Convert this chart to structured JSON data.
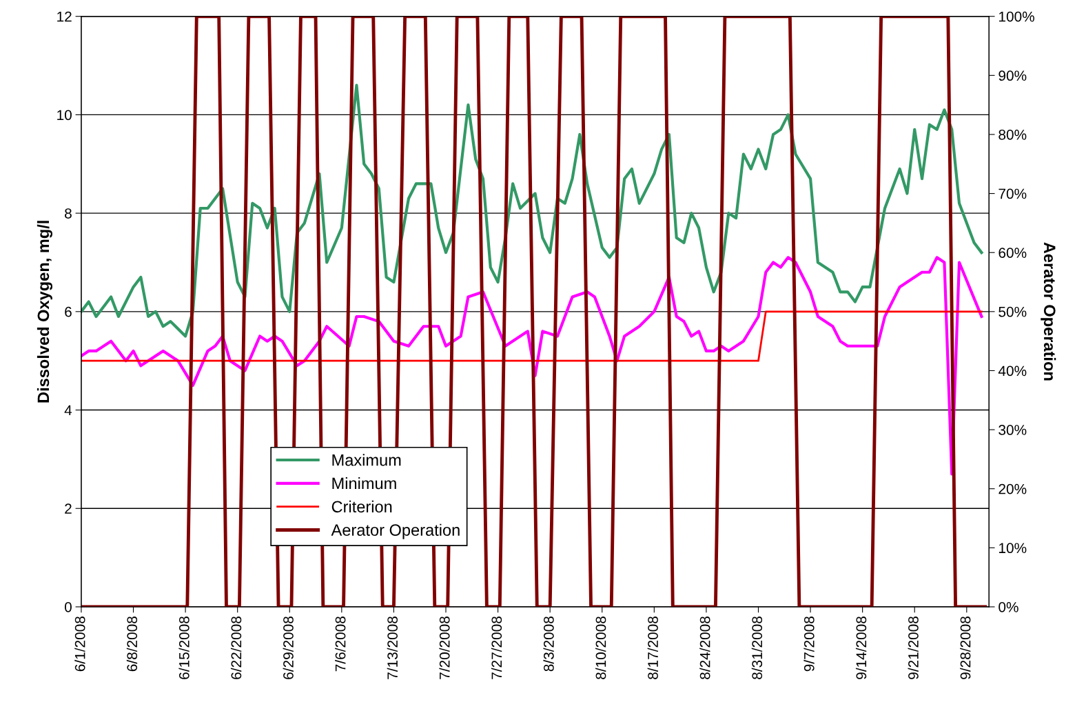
{
  "chart_data": {
    "type": "line",
    "ylabel": "Dissolved Oxygen, mg/l",
    "y2label": "Aerator Operation",
    "xlim": [
      "2008-06-01",
      "2008-10-01"
    ],
    "xticks": [
      {
        "value": "2008-06-01",
        "label": "6/1/2008"
      },
      {
        "value": "2008-06-08",
        "label": "6/8/2008"
      },
      {
        "value": "2008-06-15",
        "label": "6/15/2008"
      },
      {
        "value": "2008-06-22",
        "label": "6/22/2008"
      },
      {
        "value": "2008-06-29",
        "label": "6/29/2008"
      },
      {
        "value": "2008-07-06",
        "label": "7/6/2008"
      },
      {
        "value": "2008-07-13",
        "label": "7/13/2008"
      },
      {
        "value": "2008-07-20",
        "label": "7/20/2008"
      },
      {
        "value": "2008-07-27",
        "label": "7/27/2008"
      },
      {
        "value": "2008-08-03",
        "label": "8/3/2008"
      },
      {
        "value": "2008-08-10",
        "label": "8/10/2008"
      },
      {
        "value": "2008-08-17",
        "label": "8/17/2008"
      },
      {
        "value": "2008-08-24",
        "label": "8/24/2008"
      },
      {
        "value": "2008-08-31",
        "label": "8/31/2008"
      },
      {
        "value": "2008-09-07",
        "label": "9/7/2008"
      },
      {
        "value": "2008-09-14",
        "label": "9/14/2008"
      },
      {
        "value": "2008-09-21",
        "label": "9/21/2008"
      },
      {
        "value": "2008-09-28",
        "label": "9/28/2008"
      }
    ],
    "ylim": [
      0,
      12
    ],
    "yticks": [
      0,
      2,
      4,
      6,
      8,
      10,
      12
    ],
    "y2lim": [
      0,
      100
    ],
    "y2ticks": [
      {
        "value": 0,
        "label": "0%"
      },
      {
        "value": 10,
        "label": "10%"
      },
      {
        "value": 20,
        "label": "20%"
      },
      {
        "value": 30,
        "label": "30%"
      },
      {
        "value": 40,
        "label": "40%"
      },
      {
        "value": 50,
        "label": "50%"
      },
      {
        "value": 60,
        "label": "60%"
      },
      {
        "value": 70,
        "label": "70%"
      },
      {
        "value": 80,
        "label": "80%"
      },
      {
        "value": 90,
        "label": "90%"
      },
      {
        "value": 100,
        "label": "100%"
      }
    ],
    "grid": "y",
    "legend": "bottom left",
    "marker": "none",
    "line_style": "solid",
    "series": [
      {
        "name": "Maximum",
        "color": "#339966",
        "x": [
          "2008-06-01",
          "2008-06-02",
          "2008-06-03",
          "2008-06-05",
          "2008-06-06",
          "2008-06-08",
          "2008-06-09",
          "2008-06-10",
          "2008-06-11",
          "2008-06-12",
          "2008-06-13",
          "2008-06-15",
          "2008-06-16",
          "2008-06-17",
          "2008-06-18",
          "2008-06-20",
          "2008-06-22",
          "2008-06-23",
          "2008-06-24",
          "2008-06-25",
          "2008-06-26",
          "2008-06-27",
          "2008-06-28",
          "2008-06-29",
          "2008-06-30",
          "2008-07-01",
          "2008-07-03",
          "2008-07-04",
          "2008-07-06",
          "2008-07-08",
          "2008-07-09",
          "2008-07-10",
          "2008-07-11",
          "2008-07-12",
          "2008-07-13",
          "2008-07-15",
          "2008-07-16",
          "2008-07-18",
          "2008-07-19",
          "2008-07-20",
          "2008-07-21",
          "2008-07-23",
          "2008-07-24",
          "2008-07-25",
          "2008-07-26",
          "2008-07-27",
          "2008-07-28",
          "2008-07-29",
          "2008-07-30",
          "2008-08-01",
          "2008-08-02",
          "2008-08-03",
          "2008-08-04",
          "2008-08-05",
          "2008-08-06",
          "2008-08-07",
          "2008-08-08",
          "2008-08-10",
          "2008-08-11",
          "2008-08-12",
          "2008-08-13",
          "2008-08-14",
          "2008-08-15",
          "2008-08-17",
          "2008-08-18",
          "2008-08-19",
          "2008-08-20",
          "2008-08-21",
          "2008-08-22",
          "2008-08-23",
          "2008-08-24",
          "2008-08-25",
          "2008-08-26",
          "2008-08-27",
          "2008-08-28",
          "2008-08-29",
          "2008-08-30",
          "2008-08-31",
          "2008-09-01",
          "2008-09-02",
          "2008-09-03",
          "2008-09-04",
          "2008-09-05",
          "2008-09-07",
          "2008-09-08",
          "2008-09-10",
          "2008-09-11",
          "2008-09-12",
          "2008-09-13",
          "2008-09-14",
          "2008-09-15",
          "2008-09-17",
          "2008-09-19",
          "2008-09-20",
          "2008-09-21",
          "2008-09-22",
          "2008-09-23",
          "2008-09-24",
          "2008-09-25",
          "2008-09-26",
          "2008-09-27",
          "2008-09-29",
          "2008-09-30"
        ],
        "values": [
          6.0,
          6.2,
          5.9,
          6.3,
          5.9,
          6.5,
          6.7,
          5.9,
          6.0,
          5.7,
          5.8,
          5.5,
          6.0,
          8.1,
          8.1,
          8.5,
          6.6,
          6.3,
          8.2,
          8.1,
          7.7,
          8.1,
          6.3,
          6.0,
          7.6,
          7.8,
          8.8,
          7.0,
          7.7,
          10.6,
          9.0,
          8.8,
          8.5,
          6.7,
          6.6,
          8.3,
          8.6,
          8.6,
          7.7,
          7.2,
          7.6,
          10.2,
          9.1,
          8.7,
          6.9,
          6.6,
          7.5,
          8.6,
          8.1,
          8.4,
          7.5,
          7.2,
          8.3,
          8.2,
          8.7,
          9.6,
          8.6,
          7.3,
          7.1,
          7.3,
          8.7,
          8.9,
          8.2,
          8.8,
          9.3,
          9.6,
          7.5,
          7.4,
          8.0,
          7.7,
          6.9,
          6.4,
          6.8,
          8.0,
          7.9,
          9.2,
          8.9,
          9.3,
          8.9,
          9.6,
          9.7,
          10.0,
          9.2,
          8.7,
          7.0,
          6.8,
          6.4,
          6.4,
          6.2,
          6.5,
          6.5,
          8.1,
          8.9,
          8.4,
          9.7,
          8.7,
          9.8,
          9.7,
          10.1,
          9.7,
          8.2,
          7.4,
          7.2
        ]
      },
      {
        "name": "Minimum",
        "color": "#ff00ff",
        "x": [
          "2008-06-01",
          "2008-06-02",
          "2008-06-03",
          "2008-06-05",
          "2008-06-07",
          "2008-06-08",
          "2008-06-09",
          "2008-06-12",
          "2008-06-14",
          "2008-06-16",
          "2008-06-18",
          "2008-06-19",
          "2008-06-20",
          "2008-06-21",
          "2008-06-23",
          "2008-06-25",
          "2008-06-26",
          "2008-06-27",
          "2008-06-28",
          "2008-06-30",
          "2008-07-01",
          "2008-07-03",
          "2008-07-04",
          "2008-07-07",
          "2008-07-08",
          "2008-07-09",
          "2008-07-11",
          "2008-07-13",
          "2008-07-15",
          "2008-07-17",
          "2008-07-19",
          "2008-07-20",
          "2008-07-22",
          "2008-07-23",
          "2008-07-25",
          "2008-07-28",
          "2008-07-31",
          "2008-08-01",
          "2008-08-02",
          "2008-08-04",
          "2008-08-06",
          "2008-08-08",
          "2008-08-09",
          "2008-08-11",
          "2008-08-12",
          "2008-08-13",
          "2008-08-15",
          "2008-08-17",
          "2008-08-19",
          "2008-08-20",
          "2008-08-21",
          "2008-08-22",
          "2008-08-23",
          "2008-08-24",
          "2008-08-25",
          "2008-08-26",
          "2008-08-27",
          "2008-08-29",
          "2008-08-31",
          "2008-09-01",
          "2008-09-02",
          "2008-09-03",
          "2008-09-04",
          "2008-09-05",
          "2008-09-07",
          "2008-09-08",
          "2008-09-10",
          "2008-09-11",
          "2008-09-12",
          "2008-09-16",
          "2008-09-17",
          "2008-09-19",
          "2008-09-20",
          "2008-09-22",
          "2008-09-23",
          "2008-09-24",
          "2008-09-25",
          "2008-09-26",
          "2008-09-27",
          "2008-09-30"
        ],
        "values": [
          5.1,
          5.2,
          5.2,
          5.4,
          5.0,
          5.2,
          4.9,
          5.2,
          5.0,
          4.5,
          5.2,
          5.3,
          5.5,
          5.0,
          4.8,
          5.5,
          5.4,
          5.5,
          5.4,
          4.9,
          5.0,
          5.4,
          5.7,
          5.3,
          5.9,
          5.9,
          5.8,
          5.4,
          5.3,
          5.7,
          5.7,
          5.3,
          5.5,
          6.3,
          6.4,
          5.3,
          5.6,
          4.7,
          5.6,
          5.5,
          6.3,
          6.4,
          6.3,
          5.5,
          5.0,
          5.5,
          5.7,
          6.0,
          6.7,
          5.9,
          5.8,
          5.5,
          5.6,
          5.2,
          5.2,
          5.3,
          5.2,
          5.4,
          5.9,
          6.8,
          7.0,
          6.9,
          7.1,
          7.0,
          6.4,
          5.9,
          5.7,
          5.4,
          5.3,
          5.3,
          5.9,
          6.5,
          6.6,
          6.8,
          6.8,
          7.1,
          7.0,
          2.7,
          7.0,
          5.9
        ]
      },
      {
        "name": "Criterion",
        "color": "#ff0000",
        "x": [
          "2008-06-01",
          "2008-08-31",
          "2008-09-01",
          "2008-09-30"
        ],
        "values": [
          5,
          5,
          6,
          6
        ]
      },
      {
        "name": "Aerator Operation",
        "color": "#800000",
        "axis": "y2",
        "x": [
          "2008-06-01",
          "2008-06-15T06:00",
          "2008-06-16T12:00",
          "2008-06-19T12:00",
          "2008-06-20T12:00",
          "2008-06-22T06:00",
          "2008-06-23T12:00",
          "2008-06-26T06:00",
          "2008-06-27T12:00",
          "2008-06-29T06:00",
          "2008-06-30T12:00",
          "2008-07-02T12:00",
          "2008-07-03T12:00",
          "2008-07-06T06:00",
          "2008-07-07T12:00",
          "2008-07-10T06:00",
          "2008-07-11T12:00",
          "2008-07-13T00:00",
          "2008-07-14T12:00",
          "2008-07-17T06:00",
          "2008-07-18T12:00",
          "2008-07-20T06:00",
          "2008-07-21T12:00",
          "2008-07-24T06:00",
          "2008-07-25T12:00",
          "2008-07-27T06:00",
          "2008-07-28T12:00",
          "2008-07-31T00:00",
          "2008-08-01T06:00",
          "2008-08-03T00:00",
          "2008-08-04T12:00",
          "2008-08-07T06:00",
          "2008-08-08T12:00",
          "2008-08-11T06:00",
          "2008-08-12T12:00",
          "2008-08-18T12:00",
          "2008-08-19T12:00",
          "2008-08-25T06:00",
          "2008-08-26T12:00",
          "2008-09-04T06:00",
          "2008-09-05T12:00",
          "2008-09-15T06:00",
          "2008-09-16T12:00",
          "2008-09-25T12:00",
          "2008-09-26T12:00",
          "2008-09-30T12:00"
        ],
        "values": [
          0,
          0,
          100,
          100,
          0,
          0,
          100,
          100,
          0,
          0,
          100,
          100,
          0,
          0,
          100,
          100,
          0,
          0,
          100,
          100,
          0,
          0,
          100,
          100,
          0,
          0,
          100,
          100,
          0,
          0,
          100,
          100,
          0,
          0,
          100,
          100,
          0,
          0,
          100,
          100,
          0,
          0,
          100,
          100,
          0,
          0
        ]
      }
    ]
  }
}
